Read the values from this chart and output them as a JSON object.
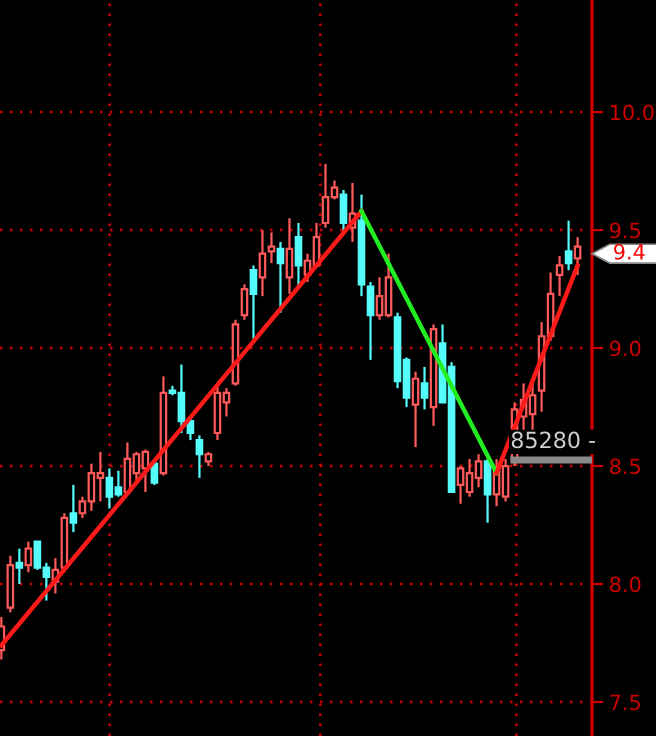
{
  "chart_data": {
    "type": "candlestick",
    "categories": [
      null,
      null,
      null,
      null,
      null,
      null,
      null,
      null,
      null,
      null,
      null,
      null,
      null,
      null,
      null,
      null,
      null,
      null,
      null,
      null,
      null,
      null,
      null,
      null,
      null,
      null,
      null,
      null,
      null,
      null,
      null,
      null,
      null,
      null,
      null,
      null,
      null,
      null,
      null,
      null,
      null,
      null,
      null,
      null,
      null,
      null,
      null,
      null,
      null,
      null,
      null,
      null,
      null,
      null,
      null,
      null,
      null,
      null,
      null,
      null,
      null,
      null,
      null,
      null,
      null
    ],
    "ohlc": [
      [
        7.72,
        7.86,
        7.68,
        7.82
      ],
      [
        7.9,
        8.12,
        7.88,
        8.08
      ],
      [
        8.09,
        8.15,
        8.0,
        8.07
      ],
      [
        8.08,
        8.18,
        8.05,
        8.15
      ],
      [
        8.18,
        8.18,
        8.06,
        8.07
      ],
      [
        8.07,
        8.09,
        7.93,
        8.03
      ],
      [
        8.01,
        8.11,
        7.96,
        8.06
      ],
      [
        8.07,
        8.3,
        8.05,
        8.28
      ],
      [
        8.3,
        8.42,
        8.22,
        8.26
      ],
      [
        8.3,
        8.37,
        8.28,
        8.35
      ],
      [
        8.35,
        8.51,
        8.31,
        8.47
      ],
      [
        8.45,
        8.56,
        8.35,
        8.47
      ],
      [
        8.45,
        8.49,
        8.32,
        8.37
      ],
      [
        8.41,
        8.48,
        8.37,
        8.38
      ],
      [
        8.39,
        8.6,
        8.38,
        8.53
      ],
      [
        8.47,
        8.56,
        8.44,
        8.55
      ],
      [
        8.49,
        8.57,
        8.39,
        8.56
      ],
      [
        8.51,
        8.52,
        8.42,
        8.43
      ],
      [
        8.47,
        8.88,
        8.46,
        8.81
      ],
      [
        8.82,
        8.84,
        8.8,
        8.81
      ],
      [
        8.81,
        8.93,
        8.64,
        8.69
      ],
      [
        8.69,
        8.71,
        8.61,
        8.64
      ],
      [
        8.61,
        8.63,
        8.45,
        8.55
      ],
      [
        8.52,
        8.56,
        8.5,
        8.55
      ],
      [
        8.64,
        8.85,
        8.61,
        8.81
      ],
      [
        8.77,
        8.83,
        8.71,
        8.81
      ],
      [
        8.85,
        9.12,
        8.84,
        9.1
      ],
      [
        9.14,
        9.27,
        9.12,
        9.25
      ],
      [
        9.33,
        9.35,
        9.04,
        9.23
      ],
      [
        9.3,
        9.5,
        9.22,
        9.4
      ],
      [
        9.41,
        9.49,
        9.36,
        9.43
      ],
      [
        9.42,
        9.45,
        9.15,
        9.36
      ],
      [
        9.3,
        9.55,
        9.23,
        9.42
      ],
      [
        9.47,
        9.53,
        9.26,
        9.35
      ],
      [
        9.31,
        9.4,
        9.28,
        9.37
      ],
      [
        9.35,
        9.53,
        9.35,
        9.47
      ],
      [
        9.53,
        9.78,
        9.51,
        9.64
      ],
      [
        9.64,
        9.71,
        9.63,
        9.68
      ],
      [
        9.65,
        9.67,
        9.5,
        9.53
      ],
      [
        9.51,
        9.7,
        9.45,
        9.57
      ],
      [
        9.54,
        9.65,
        9.22,
        9.27
      ],
      [
        9.26,
        9.28,
        8.95,
        9.14
      ],
      [
        9.14,
        9.3,
        9.12,
        9.22
      ],
      [
        9.14,
        9.4,
        9.13,
        9.3
      ],
      [
        9.13,
        9.15,
        8.83,
        8.86
      ],
      [
        8.95,
        8.96,
        8.75,
        8.79
      ],
      [
        8.76,
        8.9,
        8.58,
        8.87
      ],
      [
        8.85,
        8.92,
        8.74,
        8.79
      ],
      [
        8.75,
        9.1,
        8.67,
        9.08
      ],
      [
        9.02,
        9.1,
        8.77,
        8.77
      ],
      [
        8.92,
        8.94,
        8.39,
        8.39
      ],
      [
        8.42,
        8.5,
        8.34,
        8.49
      ],
      [
        8.39,
        8.53,
        8.37,
        8.47
      ],
      [
        8.45,
        8.55,
        8.41,
        8.52
      ],
      [
        8.52,
        8.53,
        8.26,
        8.38
      ],
      [
        8.38,
        8.53,
        8.33,
        8.49
      ],
      [
        8.37,
        8.53,
        8.35,
        8.5
      ],
      [
        8.53,
        8.77,
        8.5,
        8.74
      ],
      [
        8.71,
        8.85,
        8.65,
        8.78
      ],
      [
        8.72,
        8.86,
        8.64,
        8.8
      ],
      [
        8.82,
        9.11,
        8.73,
        9.05
      ],
      [
        9.05,
        9.32,
        9.03,
        9.23
      ],
      [
        9.31,
        9.39,
        9.22,
        9.35
      ],
      [
        9.41,
        9.54,
        9.33,
        9.36
      ],
      [
        9.38,
        9.47,
        9.31,
        9.43
      ]
    ],
    "colors": [
      "#ff5a5a",
      "#ff5a5a",
      "#54fcfc",
      "#ff5a5a",
      "#54fcfc",
      "#54fcfc",
      "#ff5a5a",
      "#ff5a5a",
      "#54fcfc",
      "#ff5a5a",
      "#ff5a5a",
      "#ff5a5a",
      "#54fcfc",
      "#54fcfc",
      "#ff5a5a",
      "#ff5a5a",
      "#ff5a5a",
      "#54fcfc",
      "#ff5a5a",
      "#54fcfc",
      "#54fcfc",
      "#54fcfc",
      "#54fcfc",
      "#ff5a5a",
      "#ff5a5a",
      "#ff5a5a",
      "#ff5a5a",
      "#ff5a5a",
      "#54fcfc",
      "#ff5a5a",
      "#ff5a5a",
      "#54fcfc",
      "#ff5a5a",
      "#54fcfc",
      "#ff5a5a",
      "#ff5a5a",
      "#ff5a5a",
      "#ff5a5a",
      "#54fcfc",
      "#ff5a5a",
      "#54fcfc",
      "#54fcfc",
      "#ff5a5a",
      "#ff5a5a",
      "#54fcfc",
      "#54fcfc",
      "#ff5a5a",
      "#54fcfc",
      "#ff5a5a",
      "#54fcfc",
      "#54fcfc",
      "#ff5a5a",
      "#ff5a5a",
      "#ff5a5a",
      "#54fcfc",
      "#ff5a5a",
      "#ff5a5a",
      "#ff5a5a",
      "#ff5a5a",
      "#ff5a5a",
      "#ff5a5a",
      "#ff5a5a",
      "#ff5a5a",
      "#54fcfc",
      "#ff5a5a"
    ],
    "series": [
      {
        "type": "line",
        "color": "#ff1a1a",
        "values": [
          7.74,
          null,
          null,
          null,
          null,
          null,
          null,
          null,
          null,
          null,
          null,
          null,
          null,
          null,
          null,
          null,
          null,
          null,
          null,
          null,
          null,
          null,
          null,
          null,
          null,
          null,
          null,
          null,
          null,
          null,
          null,
          null,
          null,
          null,
          null,
          null,
          null,
          null,
          null,
          null,
          9.58,
          null,
          null,
          null,
          null,
          null,
          null,
          null,
          null,
          null,
          null,
          null,
          null,
          null,
          null,
          null,
          null,
          null,
          null,
          null,
          null,
          null,
          null,
          null,
          null
        ]
      },
      {
        "type": "line",
        "color": "#22ee22",
        "values": [
          null,
          null,
          null,
          null,
          null,
          null,
          null,
          null,
          null,
          null,
          null,
          null,
          null,
          null,
          null,
          null,
          null,
          null,
          null,
          null,
          null,
          null,
          null,
          null,
          null,
          null,
          null,
          null,
          null,
          null,
          null,
          null,
          null,
          null,
          null,
          null,
          null,
          null,
          null,
          null,
          9.58,
          null,
          null,
          null,
          null,
          null,
          null,
          null,
          null,
          null,
          null,
          null,
          null,
          null,
          null,
          8.47,
          null,
          null,
          null,
          null,
          null,
          null,
          null,
          null,
          null
        ]
      },
      {
        "type": "line",
        "color": "#ff1a1a",
        "values": [
          null,
          null,
          null,
          null,
          null,
          null,
          null,
          null,
          null,
          null,
          null,
          null,
          null,
          null,
          null,
          null,
          null,
          null,
          null,
          null,
          null,
          null,
          null,
          null,
          null,
          null,
          null,
          null,
          null,
          null,
          null,
          null,
          null,
          null,
          null,
          null,
          null,
          null,
          null,
          null,
          null,
          null,
          null,
          null,
          null,
          null,
          null,
          null,
          null,
          null,
          null,
          null,
          null,
          null,
          null,
          8.47,
          null,
          null,
          null,
          null,
          null,
          null,
          null,
          null,
          9.35
        ]
      }
    ],
    "ylim": [
      7.356,
      10.475
    ],
    "yticks": [
      {
        "value": 7.5,
        "label": "7.5"
      },
      {
        "value": 8.0,
        "label": "8.0"
      },
      {
        "value": 8.5,
        "label": "8.5"
      },
      {
        "value": 9.0,
        "label": "9.0"
      },
      {
        "value": 9.5,
        "label": "9.5"
      },
      {
        "value": 10.0,
        "label": "10.0"
      }
    ],
    "grid": true,
    "tick_labels": "y",
    "annotations": [
      "85280 -",
      "9.4"
    ]
  }
}
